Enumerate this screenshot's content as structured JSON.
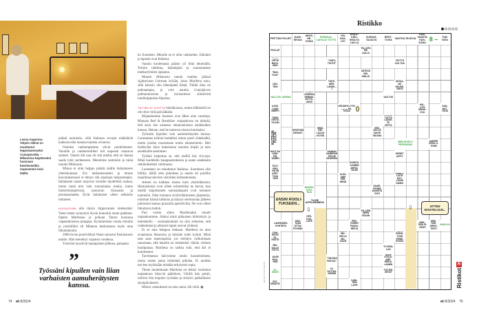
{
  "left_page": {
    "caption": "Leena Angerma-Volpen elämä on muuttunut leppoisammaksi Comojärvellä. – Milanossa käydessäni huomaan kävelevänikin nopeammin kuin täällä.",
    "col1": [
      "päästä naimisiin, sillä Italiassa arvopit määräävät kaikesta eikä maassa tunneta avioeroa.",
      "Onneksi vanhempamme olivat puolellamme. Vannille ja vanhemmilleni tuli nopeasti mukavat suhteet. Vannin äiti taas oli sitä mieltä, että on ihanaa saada tytär perheeseen. Menimme naimisiin ja minä muutin Milanoon.",
      "Minun ei ollut helppo päästä sisälle italialaiseen yhteiskuntaan. Ero italialaisnaisten ja minun kasvatuksessani ei tehnyt sitä ainakaan helpommaksi. Italialaiset naiset tarjoivat vieraille täydellistä ruokaa, mutta minä tein vain suomalaisia ruokia, kuten lindströminpihvejä, janssonin kiusausta ja perunasalaattia. Eivät italialaiset olleet sellaisiin tottuneet."
    ],
    "section1_lead": "ALKUAJOINA",
    "section1": [
      "olin täysin riippuvainen miehestäni. Vasta lasten synnyttyä löysin kunnolla oman paikkani. Opetin Marilenan ja poikani Timon koulussa vapaaehtoisena jumppaa. Kymmenisen vuotta minulla ja ystävälläni oli Milanon keskustassa myös oma liikuntakoulu.",
      "2000-luvun puolivälissä Vanni sairastui Parkinsonin tautiin. Hän menehtyi vajaassa vuodessa.",
      "Ystäväni kyselivät hautajaisten jälkeen, palaanko"
    ],
    "quote_mark": "”",
    "quote": "Työssäni kipuilen vain liian varhaisten aamuherätysten kanssa.",
    "page_number": "74",
    "magazine": "et",
    "issue": "8/2024"
  },
  "middle_column": {
    "paras": [
      "ko Suomeen. Minulle se ei ollut vaihtoehto. Elämäni ja lapseni ovat Italiassa.",
      "Vannin kuolemasta pääsin yli töitä tekemällä. Toimin tulkkina, kääntäjänä ja suomalaisten matkaryhmien oppaana.",
      "Muutin Milanosta tannin matkan päässä sijaitsevaan Lierman kylään, jossa Marilena asuu, sillä halusin olla lähempänä häntä. Täällä ilma on puhtaampaa, ja voin nauttia Comojärven palmurannoista ja horisontissa siintävistä lumihuippuista Alpeista."
    ],
    "section2_lead": "TÄYTÄN 81 VUOTTA",
    "section2": [
      "heinäkuussa, mutta eläkkeellä en ole ollut vielä päivääkään.",
      "Majatalomme huoneet ovat lähes aina varattuja. Minusta Bed & Breakfast -majatalossa on tärkeää, että asun itse samassa rakennuksessa asiakkaiden kanssa. Haluan, että he tuntevat olonsa kotoisaksi.",
      "Työssäni kipuilen vain aamuherätysten kanssa. Luontainen kelloni herättäisi minut puoli yhdeksältä, mutta joudun nousemaan tuntia aikaisemmin. Heti herättyäni käyn hakemassa tuoretta leipää ja teen asiakkaille aamiaisen.",
      "Työtäni helpottaa se, että meillä käy siivooja. Minä huolehdin kauppaostoksista ja autan asiakkaita retkikohteiden valinnassa.",
      "Luonteeni on muuttunut Italiassa. Suomessa olin hillitty, täällä olen puheliaas ja nautin eri puolilta maailmaa tulevien vieraiden kohtaamisesta.",
      "Arkeni on kaikkea muuta kuin yksitoikkoista. Ikimuistoisia ovat olleet esimerkiksi ne kerrat, kun meillä majoittuneet suomalaisparit ovat menneet naimisiin. Olen hoitanut siviilivihkimisten järjestelyt, toiminut häissä tulkkina ja käynyt seremonian jälkeen juhlaväen kanssa piazzalla aperitiivilla. Ne ovat olleet liikuttavia hetkiä.",
      "Pari vuotta sitten Marilenakin muutti majataloomme. Aluksi minä pikkuisen hölmistyin ja mietiskelin – suomalaisittain on niin erikoista, että vanhemmat ja aikuiset lapset asuvat yhdessä.",
      "Ei se aina helppoa olekaan. Marilena on aina avaamassa ikkunoita ja minulle tulee kylmä. Minä taas saan tupenrapinat, jos erehdyn valikoimaan sanomaan, että hänellä on mielestäni väärän värinen huulipunaa. Marilena on tarkka siitä, että äiti ei kommentoi.",
      "Tarvittaessa häivymme omiin huoneisiimme, mutta emme jaksa mököttää pitkään. Ei meidän tarvitse myöskään mistään erityisesti sopia.",
      "Tänne muutettuaan Marilena on tehnyt isoimmat majataloon liittyvät päätökset. Välillä hän pohtii, milloin hän luopuisi työstään ja siirtyisi palkalliseen täysipäiväisesti.",
      "Minun vastaukseni on aina sama: älä vielä. ◉"
    ]
  },
  "crossword": {
    "title": "Ristikko",
    "difficulty_dots": 5,
    "difficulty_level": 1,
    "accent_color": "#38a23c",
    "highlight_color": "#f6e6b6",
    "header_clues": [
      {
        "text": "PEITTÄÄ POLVET"
      },
      {
        "text": "JUOK-SEVAA"
      },
      {
        "text": "UROS-HE-VOSIA"
      },
      {
        "text": "ESPANJA-LAISILLE TUTTU",
        "green": true
      },
      {
        "text": "VEI-SAIL-LE?"
      },
      {
        "text": "ERÄÄT KIRJ-KEALTA LAILLA"
      },
      {
        "text": "VUODAT-TAJALTA"
      },
      {
        "text": "EROT-TUVIA"
      },
      {
        "text": "VASTUS-TELEVIA"
      },
      {
        "text": "RAA-VAASTA KAN-KANA"
      },
      {
        "text": "8 –",
        "green": true,
        "big": true
      },
      {
        "text": "TUR-VATA"
      }
    ],
    "clues": [
      {
        "text": "PICK-UP"
      },
      {
        "text": "TUL-KITA ERI LAILLA"
      },
      {
        "text": "”––”-YHTYE BACK-MAN"
      },
      {
        "text": "”LENTI-TUOTE”"
      },
      {
        "text": "TÄYTTÄ JUO-TOA"
      },
      {
        "text": "”RAN-TOJA”"
      },
      {
        "text": "KÄTEVÄ JÄK-KÄILLE"
      },
      {
        "text": "LÄH-TIEN"
      },
      {
        "text": "TÄHTI-MER-LÄNEN – 1"
      },
      {
        "text": "ANTAA-VAT NOUSE-VAKSI"
      },
      {
        "text": "HALLITSI JAPANIA",
        "green": true
      },
      {
        "text": "FUTARI-LEGENDA GERMAI-NOTTA-VAKSI"
      },
      {
        "text": "VAS-TUS"
      },
      {
        "text": "AJOE-LAAN NIMIPO"
      },
      {
        "text": "KIRJAHYLLYYN ––––– HA-TUSSA"
      },
      {
        "text": "HAL-LITSI MONA-COA"
      },
      {
        "text": "KAN-NAT-TAVIA"
      },
      {
        "text": "TAIMI-KESTÄ TS-KIIN"
      },
      {
        "text": "KORVA-TOITTA LÄÄKE-TE-OETTA"
      },
      {
        "text": "KUTSUN TUOJA",
        "vertical": true
      },
      {
        "text": "SPORTSIN KENGÄT"
      },
      {
        "text": "HIMO-BRI-LAAJA/ KÄYDÄ"
      },
      {
        "text": "VESI-VÄYLIÄ SAION TAKANA"
      },
      {
        "text": "MIES MYÖS N PERÄSSÄÄN",
        "green": true
      },
      {
        "text": "AARSIN KERA LI-TORSI"
      },
      {
        "text": "KUUT-SA LIMA-PIN-TAINEN"
      },
      {
        "text": "VANHAN KAMERAN TEKIJÄ GEORGES"
      },
      {
        "text": "MONET ANTIT"
      },
      {
        "text": "TOLP-PIEN VÄLIIN ASET-TUVA JONI"
      },
      {
        "text": "KONSTA-LIGINEN ARVIO-TELEE"
      },
      {
        "text": "ALKU-AINE PER-MEÄÄ"
      },
      {
        "text": "SÄHKÖ-LAITE MYY-LOGIN NAIMO"
      },
      {
        "text": "MAIDON TUOT-TAJA",
        "green": true
      },
      {
        "text": "SAARI-RYHMÄ AAVASTA VUOI"
      },
      {
        "text": "TUORE APPELSIINIMEHU"
      },
      {
        "text": "KES-KUS-LAITE"
      },
      {
        "text": "PIL-LEIN SIEEN OSAAN"
      },
      {
        "text": "LANKEAMIS-KOHTEITA"
      },
      {
        "text": "VAIO-TAAN OTTAA PÖYDÄN"
      },
      {
        "text": "PER-HONEN PAAKA-RESTA"
      },
      {
        "text": "VAEL-TAVA SI-VIKÄS"
      },
      {
        "text": "MES-TARI-ARKKI-TEHTI"
      },
      {
        "text": "HAAS-KA",
        "green": true
      },
      {
        "text": "COW-BOYN VA-RUSTE"
      },
      {
        "text": "KENYS MU-DELLA MU-KAAN"
      },
      {
        "text": "TÄHTI-PUKUI-TUAN VENEI-KOSSA"
      },
      {
        "text": "MAI-KALLE TUTTU"
      },
      {
        "text": "TV-VISAI-LIJA"
      },
      {
        "text": "JUURI MAA-HAN"
      },
      {
        "text": "”TÄKKÄÄ FAR-KA”"
      },
      {
        "text": "MONI ETELÄ-AME-RIKKA-LAINEN"
      },
      {
        "text": "YK-SIKKÖ",
        "green": true
      },
      {
        "text": "LII-KUTTAA JOMIDÄ"
      },
      {
        "text": "TYÖ-PÄI-SEVÄT"
      },
      {
        "text": "RYT-MIKÄITÄ"
      },
      {
        "text": "ILMA-TIEN LAITE"
      }
    ],
    "bubble_left": "ENSIN ROOLI-TUKSEEN...",
    "bubble_right": "SITTEN MAISTELUUN...",
    "brand": "Ristikot",
    "brand_logo": "R",
    "credit": "LAATIJAT: SUSSU KARTTO",
    "page_number": "75",
    "magazine": "et",
    "issue": "8/2024"
  }
}
